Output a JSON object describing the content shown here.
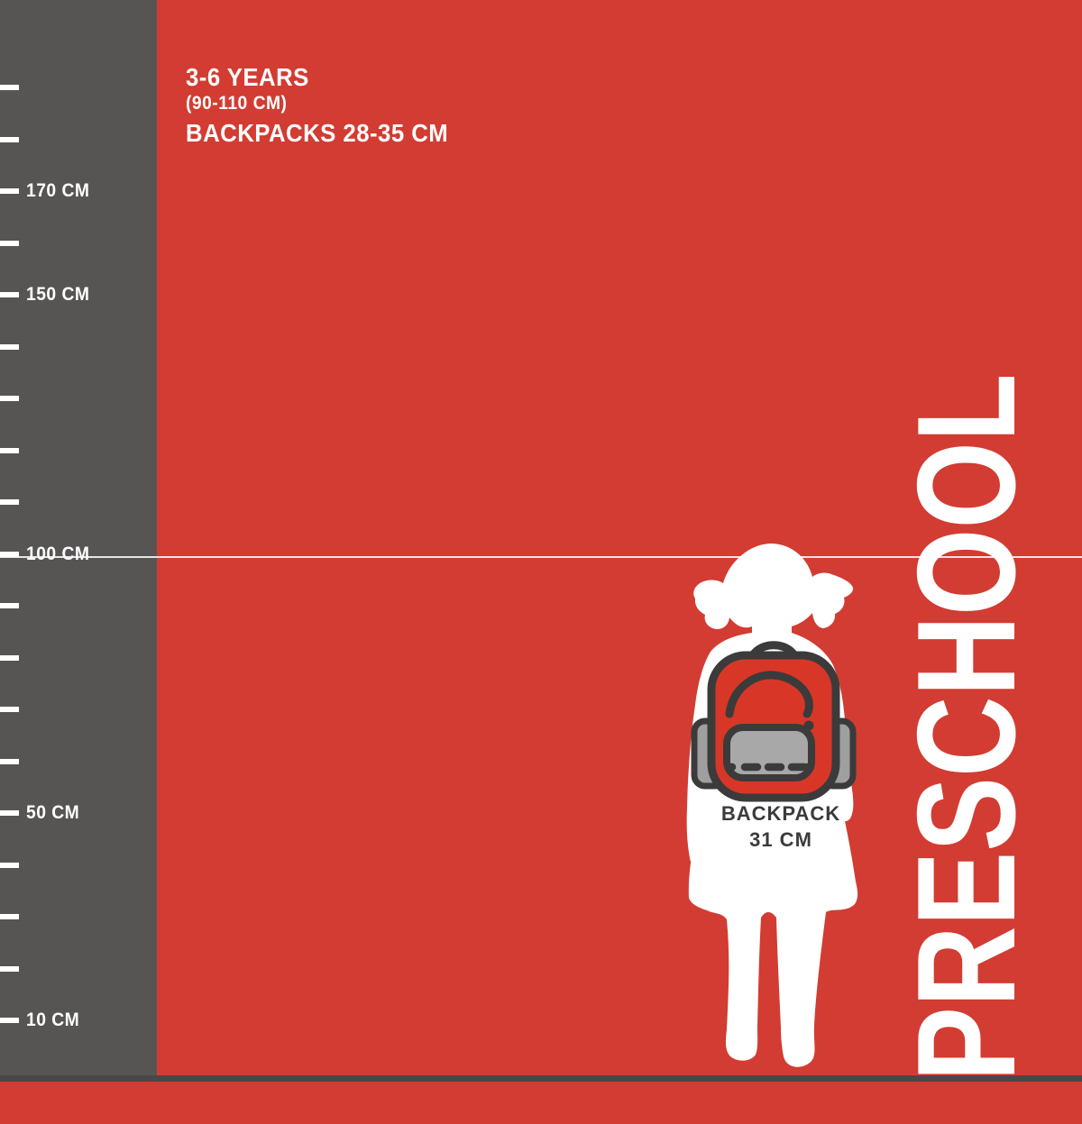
{
  "title_block": {
    "age_range": "3-6 YEARS",
    "height_range": "(90-110 CM)",
    "backpack_range": "BACKPACKS 28-35 CM"
  },
  "ruler": {
    "unit": "CM",
    "ticks": [
      {
        "cm": 190,
        "label": ""
      },
      {
        "cm": 180,
        "label": ""
      },
      {
        "cm": 170,
        "label": "170 CM"
      },
      {
        "cm": 160,
        "label": ""
      },
      {
        "cm": 150,
        "label": "150 CM"
      },
      {
        "cm": 140,
        "label": ""
      },
      {
        "cm": 130,
        "label": ""
      },
      {
        "cm": 120,
        "label": ""
      },
      {
        "cm": 110,
        "label": ""
      },
      {
        "cm": 100,
        "label": "100 CM"
      },
      {
        "cm": 90,
        "label": ""
      },
      {
        "cm": 80,
        "label": ""
      },
      {
        "cm": 70,
        "label": ""
      },
      {
        "cm": 60,
        "label": ""
      },
      {
        "cm": 50,
        "label": "50 CM"
      },
      {
        "cm": 40,
        "label": ""
      },
      {
        "cm": 30,
        "label": ""
      },
      {
        "cm": 20,
        "label": ""
      },
      {
        "cm": 10,
        "label": "10 CM"
      }
    ]
  },
  "reference_line": {
    "cm": 100
  },
  "figure": {
    "silhouette": "girl-back-view-with-pigtails",
    "backpack_label_line1": "BACKPACK",
    "backpack_label_line2": "31 CM"
  },
  "side_label": "PRESCHOOL",
  "colors": {
    "background_red": "#d23c32",
    "backpack_red": "#d83728",
    "ruler_gray": "#575454",
    "icon_outline": "#3b3b3b",
    "pocket_gray": "#a8a8a8",
    "strap_gray": "#9f9f9f",
    "bottom_strip": "#4a4747",
    "text_white": "#ffffff"
  }
}
